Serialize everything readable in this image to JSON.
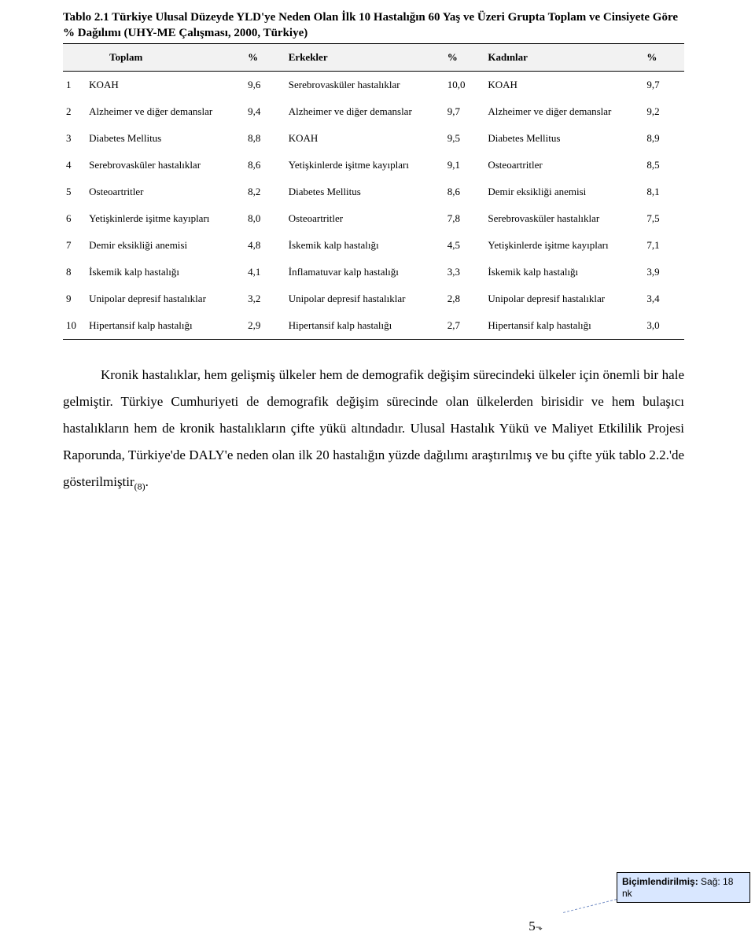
{
  "title": "Tablo 2.1 Türkiye Ulusal Düzeyde YLD'ye Neden Olan İlk 10 Hastalığın 60 Yaş ve Üzeri Grupta Toplam ve Cinsiyete Göre % Dağılımı (UHY-ME Çalışması, 2000, Türkiye)",
  "columns": {
    "toplam": "Toplam",
    "pct": "%",
    "erkekler": "Erkekler",
    "kadinlar": "Kadınlar"
  },
  "rows": [
    {
      "r": "1",
      "t": "KOAH",
      "tp": "9,6",
      "e": "Serebrovasküler hastalıklar",
      "ep": "10,0",
      "k": "KOAH",
      "kp": "9,7"
    },
    {
      "r": "2",
      "t": "Alzheimer ve diğer demanslar",
      "tp": "9,4",
      "e": "Alzheimer ve diğer demanslar",
      "ep": "9,7",
      "k": "Alzheimer ve diğer demanslar",
      "kp": "9,2"
    },
    {
      "r": "3",
      "t": "Diabetes Mellitus",
      "tp": "8,8",
      "e": "KOAH",
      "ep": "9,5",
      "k": "Diabetes Mellitus",
      "kp": "8,9"
    },
    {
      "r": "4",
      "t": "Serebrovasküler hastalıklar",
      "tp": "8,6",
      "e": "Yetişkinlerde işitme kayıpları",
      "ep": "9,1",
      "k": "Osteoartritler",
      "kp": "8,5"
    },
    {
      "r": "5",
      "t": "Osteoartritler",
      "tp": "8,2",
      "e": "Diabetes Mellitus",
      "ep": "8,6",
      "k": "Demir eksikliği anemisi",
      "kp": "8,1"
    },
    {
      "r": "6",
      "t": "Yetişkinlerde işitme kayıpları",
      "tp": "8,0",
      "e": "Osteoartritler",
      "ep": "7,8",
      "k": "Serebrovasküler hastalıklar",
      "kp": "7,5"
    },
    {
      "r": "7",
      "t": "Demir eksikliği anemisi",
      "tp": "4,8",
      "e": "İskemik kalp hastalığı",
      "ep": "4,5",
      "k": "Yetişkinlerde işitme kayıpları",
      "kp": "7,1"
    },
    {
      "r": "8",
      "t": "İskemik kalp hastalığı",
      "tp": "4,1",
      "e": "İnflamatuvar kalp hastalığı",
      "ep": "3,3",
      "k": "İskemik kalp hastalığı",
      "kp": "3,9"
    },
    {
      "r": "9",
      "t": "Unipolar depresif hastalıklar",
      "tp": "3,2",
      "e": "Unipolar depresif hastalıklar",
      "ep": "2,8",
      "k": "Unipolar depresif hastalıklar",
      "kp": "3,4"
    },
    {
      "r": "10",
      "t": "Hipertansif kalp hastalığı",
      "tp": "2,9",
      "e": "Hipertansif kalp hastalığı",
      "ep": "2,7",
      "k": "Hipertansif kalp hastalığı",
      "kp": "3,0"
    }
  ],
  "paragraph_a": "Kronik hastalıklar, hem gelişmiş ülkeler hem de demografik değişim sürecindeki ülkeler için önemli bir hale gelmiştir. Türkiye Cumhuriyeti de demografik değişim sürecinde olan ülkelerden birisidir ve hem bulaşıcı hastalıkların hem de kronik hastalıkların çifte yükü altındadır. Ulusal Hastalık Yükü ve Maliyet Etkililik Projesi Raporunda, Türkiye'de DALY'e neden olan ilk 20 hastalığın yüzde dağılımı araştırılmış ve bu çifte yük tablo 2.2.'de gösterilmiştir",
  "paragraph_ref": "(8)",
  "paragraph_end": ".",
  "comment_label": "Biçimlendirilmiş:",
  "comment_text": " Sağ:  18 nk",
  "page_number": "5"
}
